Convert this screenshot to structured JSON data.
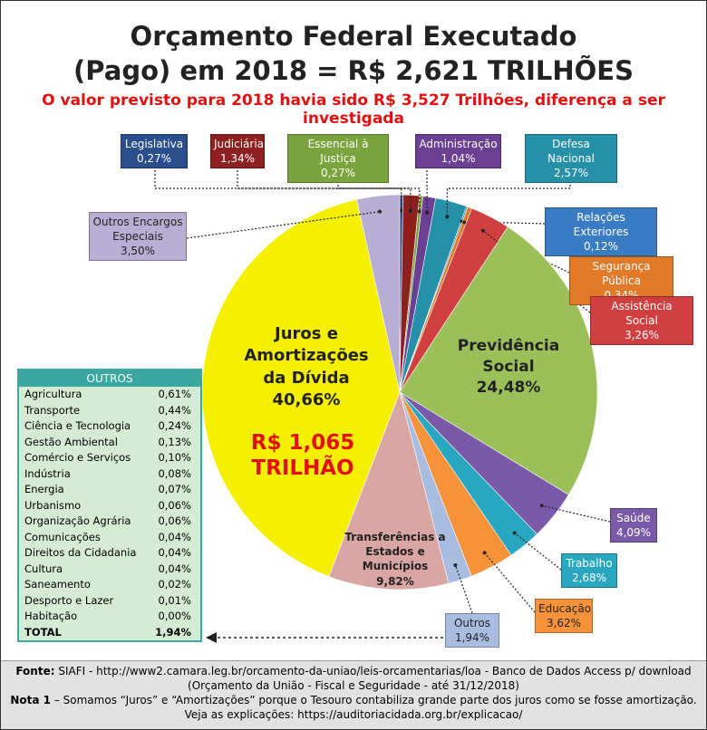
{
  "chart_data": {
    "type": "pie",
    "title": [
      "Orçamento Federal Executado",
      "(Pago) em 2018 = R$ 2,621 TRILHÕES"
    ],
    "subtitle": "O valor previsto para 2018 havia sido R$ 3,527 Trilhões, diferença a ser investigada",
    "categories": [
      "Legislativa",
      "Judiciária",
      "Essencial à Justiça",
      "Administração",
      "Defesa Nacional",
      "Relações Exteriores",
      "Segurança Pública",
      "Assistência Social",
      "Previdência Social",
      "Saúde",
      "Trabalho",
      "Educação",
      "Outros",
      "Transferências a Estados e Municípios",
      "Juros e Amortizações da Dívida",
      "Outros Encargos Especiais"
    ],
    "values": [
      0.27,
      1.34,
      0.27,
      1.04,
      2.57,
      0.12,
      0.34,
      3.26,
      24.48,
      4.09,
      2.68,
      3.62,
      1.94,
      9.82,
      40.66,
      3.5
    ],
    "value_labels": [
      "0,27%",
      "1,34%",
      "0,27%",
      "1,04%",
      "2,57%",
      "0,12%",
      "0,34%",
      "3,26%",
      "24,48%",
      "4,09%",
      "2,68%",
      "3,62%",
      "1,94%",
      "9,82%",
      "40,66%",
      "3,50%"
    ],
    "colors": [
      "#2b4e8c",
      "#8e2020",
      "#7aa53e",
      "#6b3f91",
      "#2590a8",
      "#3a7cc4",
      "#e07a28",
      "#d04040",
      "#9bc05a",
      "#7a5aa8",
      "#2aa7c0",
      "#f5923a",
      "#a9bde0",
      "#d9a6a3",
      "#f5f000",
      "#b8aed4"
    ],
    "annotation": "R$ 1,065 TRILHÃO"
  },
  "table": {
    "title": "OUTROS",
    "rows": [
      [
        "Agricultura",
        "0,61%"
      ],
      [
        "Transporte",
        "0,44%"
      ],
      [
        "Ciência e Tecnologia",
        "0,24%"
      ],
      [
        "Gestão Ambiental",
        "0,13%"
      ],
      [
        "Comércio e Serviços",
        "0,10%"
      ],
      [
        "Indústria",
        "0,08%"
      ],
      [
        "Energia",
        "0,07%"
      ],
      [
        "Urbanismo",
        "0,06%"
      ],
      [
        "Organização Agrária",
        "0,06%"
      ],
      [
        "Comunicações",
        "0,04%"
      ],
      [
        "Direitos da Cidadania",
        "0,04%"
      ],
      [
        "Cultura",
        "0,04%"
      ],
      [
        "Saneamento",
        "0,02%"
      ],
      [
        "Desporto e Lazer",
        "0,01%"
      ],
      [
        "Habitação",
        "0,00%"
      ],
      [
        "TOTAL",
        "1,94%"
      ]
    ]
  },
  "footer": {
    "source_label": "Fonte:",
    "source": "SIAFI - http://www2.camara.leg.br/orcamento-da-uniao/leis-orcamentarias/loa - Banco de Dados Access p/ download (Orçamento da União - Fiscal e Seguridade - até 31/12/2018)",
    "note_label": "Nota 1",
    "note": "– Somamos “Juros” e “Amortizações” porque o Tesouro contabiliza grande parte dos juros como se fosse amortização.",
    "link": "Veja as explicações: https://auditoriacidada.org.br/explicacao/"
  }
}
